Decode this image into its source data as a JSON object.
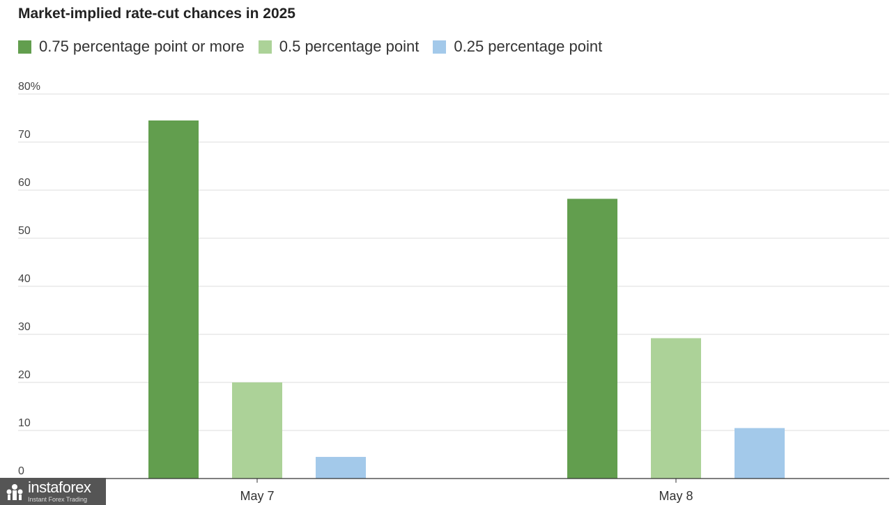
{
  "chart_data": {
    "type": "bar",
    "title": "Market-implied rate-cut chances in 2025",
    "categories": [
      "May 7",
      "May 8"
    ],
    "series": [
      {
        "name": "0.75 percentage point or more",
        "values": [
          74.5,
          58.2
        ],
        "color": "#629e4e"
      },
      {
        "name": "0.5 percentage point",
        "values": [
          20,
          29.2
        ],
        "color": "#acd298"
      },
      {
        "name": "0.25 percentage point",
        "values": [
          4.5,
          10.5
        ],
        "color": "#a3c9ea"
      }
    ],
    "yticks": [
      "80%",
      "70",
      "60",
      "50",
      "40",
      "30",
      "20",
      "10",
      "0"
    ],
    "ylim": [
      0,
      80
    ],
    "grid": true,
    "legend": "top-left"
  },
  "watermark": {
    "name": "instaforex",
    "tagline": "Instant Forex Trading"
  }
}
